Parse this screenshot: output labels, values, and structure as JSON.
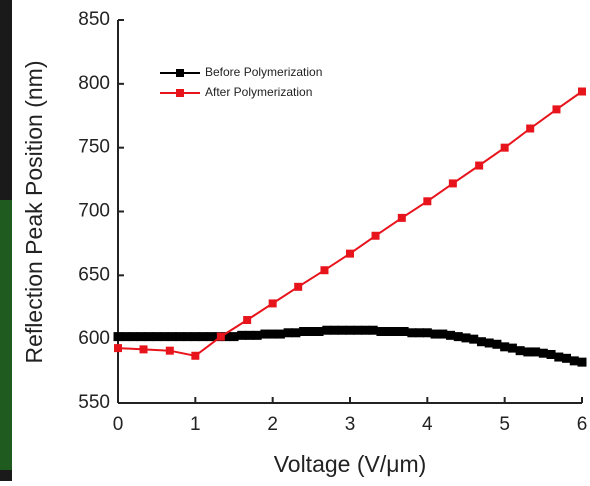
{
  "chart_data": {
    "type": "line",
    "x_label": "Voltage (V/μm)",
    "y_label": "Reflection Peak Position (nm)",
    "xlim": [
      0,
      6
    ],
    "xticks": [
      0,
      1,
      2,
      3,
      4,
      5,
      6
    ],
    "ylim": [
      550,
      850
    ],
    "yticks": [
      550,
      600,
      650,
      700,
      750,
      800,
      850
    ],
    "series": [
      {
        "name": "Before Polymerization",
        "color": "#000000",
        "x": [
          0,
          0.1,
          0.2,
          0.3,
          0.4,
          0.5,
          0.6,
          0.7,
          0.8,
          0.9,
          1,
          1.1,
          1.2,
          1.3,
          1.4,
          1.5,
          1.6,
          1.7,
          1.8,
          1.9,
          2,
          2.1,
          2.2,
          2.3,
          2.4,
          2.5,
          2.6,
          2.7,
          2.8,
          2.9,
          3,
          3.1,
          3.2,
          3.3,
          3.4,
          3.5,
          3.6,
          3.7,
          3.8,
          3.9,
          4,
          4.1,
          4.2,
          4.3,
          4.4,
          4.5,
          4.6,
          4.7,
          4.8,
          4.9,
          5,
          5.1,
          5.2,
          5.3,
          5.4,
          5.5,
          5.6,
          5.7,
          5.8,
          5.9,
          6
        ],
        "values": [
          602,
          602,
          602,
          602,
          602,
          602,
          602,
          602,
          602,
          602,
          602,
          602,
          602,
          602,
          602,
          602,
          603,
          603,
          603,
          604,
          604,
          604,
          605,
          605,
          606,
          606,
          606,
          607,
          607,
          607,
          607,
          607,
          607,
          607,
          606,
          606,
          606,
          606,
          605,
          605,
          605,
          604,
          604,
          603,
          602,
          601,
          600,
          598,
          597,
          596,
          594,
          593,
          591,
          590,
          590,
          589,
          588,
          586,
          585,
          583,
          582
        ]
      },
      {
        "name": "After Polymerization",
        "color": "#e8141c",
        "x": [
          0,
          0.33,
          0.67,
          1,
          1.33,
          1.67,
          2,
          2.33,
          2.67,
          3,
          3.33,
          3.67,
          4,
          4.33,
          4.67,
          5,
          5.33,
          5.67,
          6
        ],
        "values": [
          593,
          592,
          591,
          587,
          602,
          615,
          628,
          641,
          654,
          667,
          681,
          695,
          708,
          722,
          736,
          750,
          765,
          780,
          794
        ]
      }
    ]
  }
}
